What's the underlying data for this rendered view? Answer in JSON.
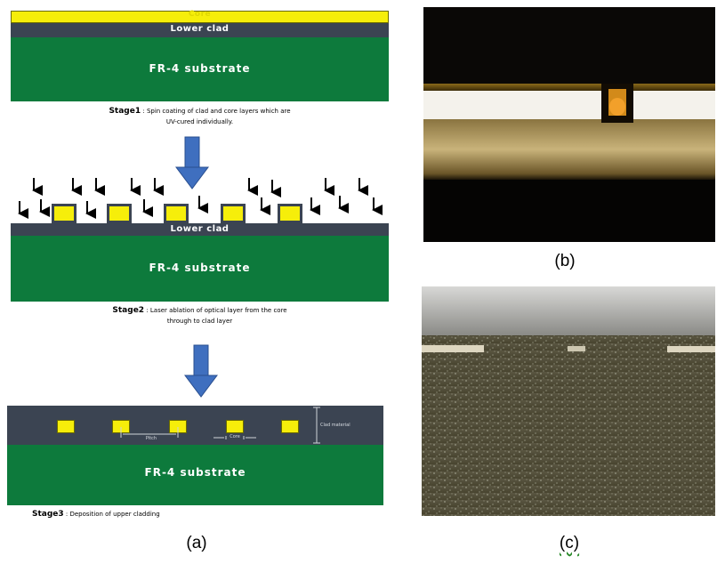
{
  "stage1": {
    "core_label": "Core",
    "clad_label": "Lower clad",
    "substrate_label": "FR-4 substrate",
    "caption_title": "Stage1",
    "caption_text_line1": ": Spin coating of clad and core layers which are",
    "caption_text_line2": "UV-cured individually."
  },
  "stage2": {
    "clad_label": "Lower clad",
    "substrate_label": "FR-4 substrate",
    "caption_title": "Stage2",
    "caption_text_line1": ": Laser ablation of optical layer from the core",
    "caption_text_line2": "through to clad layer"
  },
  "stage3": {
    "substrate_label": "FR-4 substrate",
    "upper_clad_label": "Clad material",
    "pitch_label": "Pitch",
    "width_label": "Core",
    "caption_title": "Stage3",
    "caption_text": ": Deposition of upper cladding"
  },
  "labels": {
    "a": "(a)",
    "b": "(b)",
    "c": "(c)"
  },
  "colors": {
    "substrate": "#0d7a3c",
    "clad": "#3b4452",
    "core": "#f6ee0a",
    "arrow": "#3f6fbf"
  }
}
